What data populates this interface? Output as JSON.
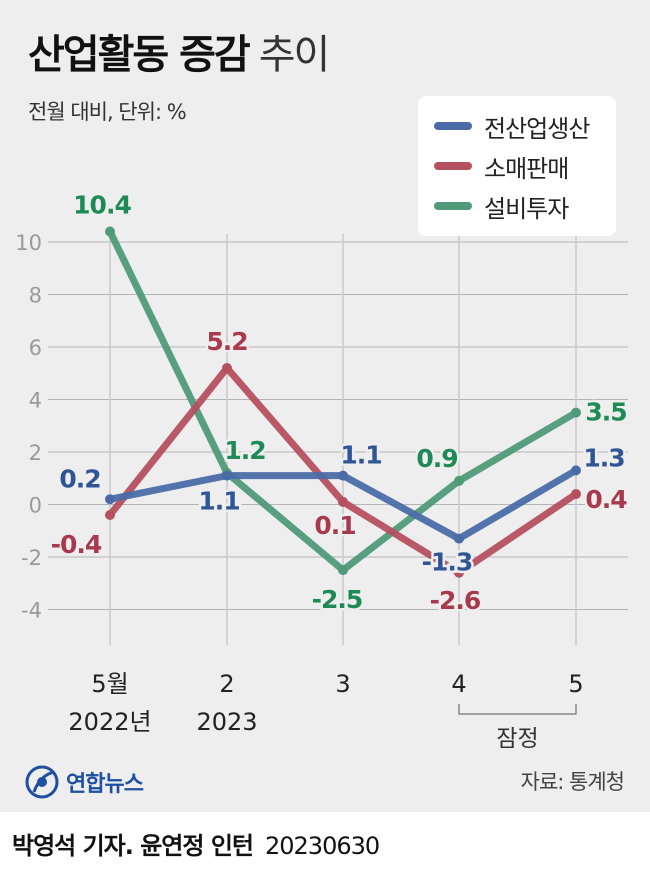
{
  "header": {
    "title": "산업활동 증감",
    "title_suffix": "추이",
    "subtitle": "전월 대비, 단위: %"
  },
  "chart_data": {
    "type": "line",
    "categories": [
      "5월",
      "2",
      "3",
      "4",
      "5"
    ],
    "category_sublabels": [
      "2022년",
      "2023",
      "",
      "",
      ""
    ],
    "bracket_label": "잠정",
    "bracket_span": [
      3,
      4
    ],
    "ylim": [
      -5,
      11
    ],
    "yticks": [
      10,
      8,
      6,
      4,
      2,
      0,
      -2,
      -4
    ],
    "grid": true,
    "legend_position": "top-right",
    "series": [
      {
        "name": "전산업생산",
        "color": "#4a6ba8",
        "label_color": "#2f5597",
        "values": [
          0.2,
          1.1,
          1.1,
          -1.3,
          1.3
        ],
        "labels": [
          "0.2",
          "1.1",
          "1.1",
          "-1.3",
          "1.3"
        ]
      },
      {
        "name": "소매판매",
        "color": "#b5505f",
        "label_color": "#a83a4e",
        "values": [
          -0.4,
          5.2,
          0.1,
          -2.6,
          0.4
        ],
        "labels": [
          "-0.4",
          "5.2",
          "0.1",
          "-2.6",
          "0.4"
        ]
      },
      {
        "name": "설비투자",
        "color": "#4f9a78",
        "label_color": "#1e8a55",
        "values": [
          10.4,
          1.2,
          -2.5,
          0.9,
          3.5
        ],
        "labels": [
          "10.4",
          "1.2",
          "-2.5",
          "0.9",
          "3.5"
        ]
      }
    ]
  },
  "footer": {
    "source": "자료: 통계청",
    "agency": "연합뉴스",
    "credit": "박영석 기자. 윤연정 인턴",
    "date": "20230630"
  }
}
